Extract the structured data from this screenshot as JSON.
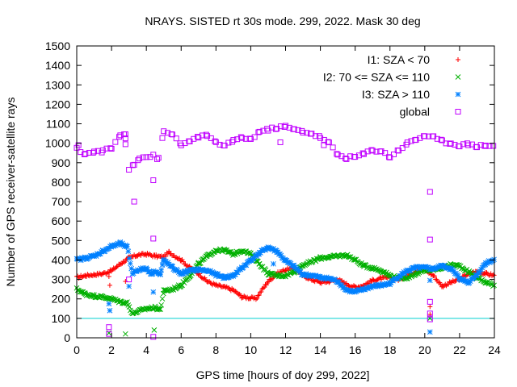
{
  "chart_data": {
    "type": "scatter",
    "title": "NRAYS. SISTED rt 30s mode. 299, 2022. Mask 30 deg",
    "xlabel": "GPS time [hours of doy 299, 2022]",
    "ylabel": "Number of GPS receiver-satellite rays",
    "xlim": [
      0,
      24
    ],
    "ylim": [
      0,
      1500
    ],
    "x_ticks": [
      "0",
      "2",
      "4",
      "6",
      "8",
      "10",
      "12",
      "14",
      "16",
      "18",
      "20",
      "22",
      "24"
    ],
    "y_ticks": [
      "0",
      "100",
      "200",
      "300",
      "400",
      "500",
      "600",
      "700",
      "800",
      "900",
      "1000",
      "1100",
      "1200",
      "1300",
      "1400",
      "1500"
    ],
    "legend_position": "top-right",
    "threshold_line": {
      "y": 100,
      "color": "#00d0d0"
    },
    "series": [
      {
        "name": "I1: SZA < 70",
        "color": "#ff0000",
        "marker": "+",
        "points": [
          [
            0,
            310
          ],
          [
            0.5,
            320
          ],
          [
            1,
            325
          ],
          [
            1.5,
            330
          ],
          [
            2,
            345
          ],
          [
            2.5,
            380
          ],
          [
            3,
            410
          ],
          [
            3.5,
            425
          ],
          [
            4,
            430
          ],
          [
            4.5,
            420
          ],
          [
            5,
            415
          ],
          [
            5.3,
            440
          ],
          [
            6,
            400
          ],
          [
            6.5,
            360
          ],
          [
            7,
            330
          ],
          [
            7.5,
            290
          ],
          [
            8,
            270
          ],
          [
            8.5,
            260
          ],
          [
            9,
            245
          ],
          [
            9.5,
            210
          ],
          [
            10,
            205
          ],
          [
            10.3,
            200
          ],
          [
            10.6,
            240
          ],
          [
            11,
            290
          ],
          [
            11.5,
            330
          ],
          [
            12,
            350
          ],
          [
            12.5,
            360
          ],
          [
            13,
            320
          ],
          [
            13.5,
            300
          ],
          [
            14,
            285
          ],
          [
            14.5,
            290
          ],
          [
            15,
            300
          ],
          [
            15.5,
            275
          ],
          [
            16,
            260
          ],
          [
            16.5,
            270
          ],
          [
            17,
            295
          ],
          [
            17.5,
            305
          ],
          [
            18,
            310
          ],
          [
            18.5,
            300
          ],
          [
            19,
            320
          ],
          [
            19.5,
            345
          ],
          [
            20,
            350
          ],
          [
            20.5,
            320
          ],
          [
            21,
            265
          ],
          [
            21.5,
            285
          ],
          [
            22,
            300
          ],
          [
            22.5,
            330
          ],
          [
            23,
            340
          ],
          [
            23.5,
            330
          ],
          [
            24,
            320
          ]
        ],
        "gaps": [
          [
            1.85,
            315
          ],
          [
            1.9,
            270
          ],
          [
            2.8,
            290
          ],
          [
            20.3,
            160
          ],
          [
            20.3,
            120
          ]
        ]
      },
      {
        "name": "I2: 70 <= SZA <= 110",
        "color": "#00b000",
        "marker": "x",
        "points": [
          [
            0,
            250
          ],
          [
            0.5,
            225
          ],
          [
            1,
            215
          ],
          [
            1.5,
            210
          ],
          [
            2,
            200
          ],
          [
            2.5,
            185
          ],
          [
            2.9,
            180
          ],
          [
            3.2,
            125
          ],
          [
            3.5,
            135
          ],
          [
            4,
            150
          ],
          [
            4.5,
            155
          ],
          [
            4.8,
            145
          ],
          [
            5,
            240
          ],
          [
            5.5,
            250
          ],
          [
            6,
            270
          ],
          [
            6.5,
            320
          ],
          [
            7,
            380
          ],
          [
            7.5,
            420
          ],
          [
            8,
            450
          ],
          [
            8.5,
            450
          ],
          [
            9,
            430
          ],
          [
            9.5,
            450
          ],
          [
            10,
            430
          ],
          [
            10.5,
            380
          ],
          [
            11,
            330
          ],
          [
            11.5,
            320
          ],
          [
            12,
            320
          ],
          [
            12.5,
            340
          ],
          [
            13,
            375
          ],
          [
            13.5,
            390
          ],
          [
            14,
            410
          ],
          [
            14.5,
            415
          ],
          [
            15,
            420
          ],
          [
            15.5,
            425
          ],
          [
            16,
            400
          ],
          [
            16.5,
            370
          ],
          [
            17,
            360
          ],
          [
            17.5,
            345
          ],
          [
            18,
            320
          ],
          [
            18.5,
            305
          ],
          [
            19,
            310
          ],
          [
            19.5,
            330
          ],
          [
            20,
            345
          ],
          [
            20.5,
            350
          ],
          [
            21,
            360
          ],
          [
            21.5,
            375
          ],
          [
            22,
            370
          ],
          [
            22.5,
            340
          ],
          [
            23,
            310
          ],
          [
            23.5,
            285
          ],
          [
            24,
            270
          ]
        ],
        "gaps": [
          [
            1.85,
            25
          ],
          [
            2.8,
            20
          ],
          [
            4.45,
            40
          ],
          [
            20.3,
            100
          ]
        ]
      },
      {
        "name": "I3: SZA > 110",
        "color": "#0080ff",
        "marker": "*",
        "points": [
          [
            0,
            400
          ],
          [
            0.5,
            410
          ],
          [
            1,
            420
          ],
          [
            1.5,
            445
          ],
          [
            2,
            470
          ],
          [
            2.5,
            485
          ],
          [
            2.9,
            465
          ],
          [
            3.2,
            330
          ],
          [
            3.5,
            350
          ],
          [
            4,
            355
          ],
          [
            4.3,
            330
          ],
          [
            4.5,
            345
          ],
          [
            4.8,
            325
          ],
          [
            5,
            400
          ],
          [
            5.5,
            360
          ],
          [
            6,
            330
          ],
          [
            6.5,
            345
          ],
          [
            7,
            350
          ],
          [
            7.5,
            345
          ],
          [
            8,
            325
          ],
          [
            8.5,
            310
          ],
          [
            9,
            320
          ],
          [
            9.5,
            360
          ],
          [
            10,
            400
          ],
          [
            10.5,
            435
          ],
          [
            11,
            465
          ],
          [
            11.5,
            445
          ],
          [
            12,
            395
          ],
          [
            12.5,
            365
          ],
          [
            13,
            325
          ],
          [
            13.5,
            320
          ],
          [
            14,
            310
          ],
          [
            14.5,
            305
          ],
          [
            15,
            290
          ],
          [
            15.5,
            245
          ],
          [
            16,
            235
          ],
          [
            16.5,
            250
          ],
          [
            17,
            265
          ],
          [
            17.5,
            270
          ],
          [
            18,
            280
          ],
          [
            18.5,
            315
          ],
          [
            19,
            345
          ],
          [
            19.5,
            360
          ],
          [
            20,
            360
          ],
          [
            20.5,
            355
          ],
          [
            21,
            370
          ],
          [
            21.5,
            355
          ],
          [
            22,
            305
          ],
          [
            22.5,
            285
          ],
          [
            23,
            325
          ],
          [
            23.5,
            385
          ],
          [
            24,
            400
          ]
        ],
        "gaps": [
          [
            1.85,
            175
          ],
          [
            1.9,
            140
          ],
          [
            3.0,
            265
          ],
          [
            4.4,
            235
          ],
          [
            11.3,
            380
          ],
          [
            20.3,
            295
          ],
          [
            20.3,
            30
          ]
        ]
      },
      {
        "name": "global",
        "color": "#c000ff",
        "marker": "square",
        "points": [
          [
            0,
            970
          ],
          [
            0.5,
            945
          ],
          [
            1,
            955
          ],
          [
            1.5,
            960
          ],
          [
            2,
            975
          ],
          [
            2.5,
            1040
          ],
          [
            2.8,
            1050
          ],
          [
            3.0,
            870
          ],
          [
            3.3,
            895
          ],
          [
            3.6,
            925
          ],
          [
            4,
            930
          ],
          [
            4.4,
            935
          ],
          [
            4.7,
            920
          ],
          [
            5,
            1060
          ],
          [
            5.5,
            1045
          ],
          [
            6,
            995
          ],
          [
            6.5,
            1005
          ],
          [
            7,
            1035
          ],
          [
            7.5,
            1040
          ],
          [
            8,
            1000
          ],
          [
            8.5,
            990
          ],
          [
            9,
            1010
          ],
          [
            9.5,
            1030
          ],
          [
            10,
            1020
          ],
          [
            10.5,
            1060
          ],
          [
            11,
            1070
          ],
          [
            11.5,
            1080
          ],
          [
            12,
            1085
          ],
          [
            12.5,
            1070
          ],
          [
            13,
            1060
          ],
          [
            13.5,
            1050
          ],
          [
            14,
            1030
          ],
          [
            14.5,
            1000
          ],
          [
            15,
            940
          ],
          [
            15.5,
            925
          ],
          [
            16,
            930
          ],
          [
            16.5,
            945
          ],
          [
            17,
            965
          ],
          [
            17.5,
            960
          ],
          [
            18,
            930
          ],
          [
            18.5,
            965
          ],
          [
            19,
            1000
          ],
          [
            19.5,
            1020
          ],
          [
            20,
            1040
          ],
          [
            20.5,
            1030
          ],
          [
            21,
            1010
          ],
          [
            21.5,
            1000
          ],
          [
            22,
            990
          ],
          [
            22.5,
            995
          ],
          [
            23,
            985
          ],
          [
            23.5,
            990
          ],
          [
            24,
            985
          ]
        ],
        "gaps": [
          [
            1.85,
            55
          ],
          [
            1.85,
            20
          ],
          [
            2.8,
            995
          ],
          [
            2.8,
            1025
          ],
          [
            3.3,
            700
          ],
          [
            4.4,
            810
          ],
          [
            4.4,
            510
          ],
          [
            4.4,
            5
          ],
          [
            20.3,
            750
          ],
          [
            20.3,
            505
          ],
          [
            20.3,
            185
          ],
          [
            20.3,
            125
          ],
          [
            20.3,
            95
          ],
          [
            11.7,
            1005
          ],
          [
            14.2,
            990
          ],
          [
            0.1,
            990
          ],
          [
            3.0,
            300
          ]
        ]
      }
    ]
  }
}
